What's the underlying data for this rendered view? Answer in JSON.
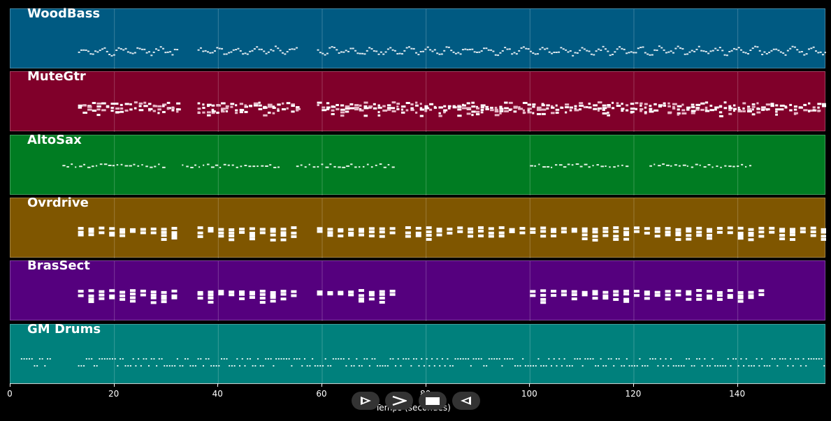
{
  "tracks": [
    {
      "name": "WoodBass",
      "color": "#005a82",
      "style": "bass"
    },
    {
      "name": "MuteGtr",
      "color": "#80002a",
      "style": "chords"
    },
    {
      "name": "AltoSax",
      "color": "#007c22",
      "style": "sparse"
    },
    {
      "name": "Ovrdrive",
      "color": "#7f5600",
      "style": "blocks"
    },
    {
      "name": "BrasSect",
      "color": "#55007e",
      "style": "blocks"
    },
    {
      "name": "GM Drums",
      "color": "#00807c",
      "style": "drums"
    }
  ],
  "axis": {
    "title": "Temps (secondes)",
    "tick_labels": [
      "0",
      "20",
      "40",
      "60",
      "80",
      "100",
      "120",
      "140"
    ],
    "max": 157
  },
  "transport": {
    "buttons": [
      {
        "name": "play-icon-button",
        "icon": "play-icon"
      },
      {
        "name": "forward-icon-button",
        "icon": "chevron-right-icon"
      },
      {
        "name": "stop-icon-button",
        "icon": "stop-icon"
      },
      {
        "name": "rewind-icon-button",
        "icon": "rewind-icon"
      }
    ]
  }
}
